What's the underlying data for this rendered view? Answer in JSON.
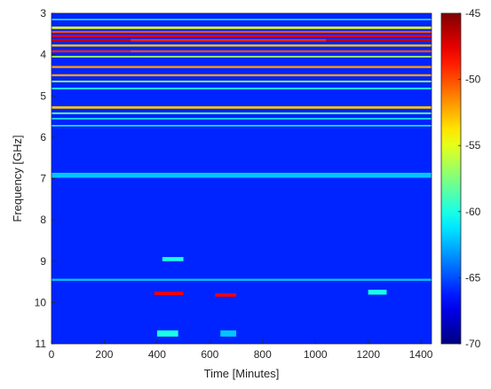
{
  "chart_data": {
    "type": "heatmap",
    "title": "",
    "xlabel": "Time [Minutes]",
    "ylabel": "Frequency [GHz]",
    "xlim": [
      0,
      1440
    ],
    "ylim": [
      3,
      11
    ],
    "y_direction": "reversed",
    "x_ticks": [
      0,
      200,
      400,
      600,
      800,
      1000,
      1200,
      1400
    ],
    "y_ticks": [
      3,
      4,
      5,
      6,
      7,
      8,
      9,
      10,
      11
    ],
    "colormap": "jet",
    "colorbar": {
      "range": [
        -70,
        -45
      ],
      "ticks": [
        -45,
        -50,
        -55,
        -60,
        -65,
        -70
      ]
    },
    "background_level": -66,
    "bands": [
      {
        "f": 3.15,
        "w": 0.03,
        "level": -60,
        "t": [
          0,
          1440
        ]
      },
      {
        "f": 3.35,
        "w": 0.06,
        "level": -55,
        "t": [
          0,
          1440
        ]
      },
      {
        "f": 3.45,
        "w": 0.05,
        "level": -50,
        "t": [
          0,
          1440
        ]
      },
      {
        "f": 3.55,
        "w": 0.05,
        "level": -48,
        "t": [
          0,
          1440
        ]
      },
      {
        "f": 3.65,
        "w": 0.06,
        "level": -47,
        "t": [
          0,
          300
        ]
      },
      {
        "f": 3.65,
        "w": 0.06,
        "level": -49,
        "t": [
          300,
          1040
        ]
      },
      {
        "f": 3.65,
        "w": 0.06,
        "level": -47,
        "t": [
          1040,
          1440
        ]
      },
      {
        "f": 3.78,
        "w": 0.05,
        "level": -53,
        "t": [
          0,
          1440
        ]
      },
      {
        "f": 3.92,
        "w": 0.05,
        "level": -49,
        "t": [
          0,
          300
        ]
      },
      {
        "f": 3.92,
        "w": 0.05,
        "level": -50,
        "t": [
          300,
          1440
        ]
      },
      {
        "f": 4.05,
        "w": 0.04,
        "level": -57,
        "t": [
          0,
          1440
        ]
      },
      {
        "f": 4.3,
        "w": 0.05,
        "level": -52,
        "t": [
          0,
          1440
        ]
      },
      {
        "f": 4.5,
        "w": 0.05,
        "level": -52,
        "t": [
          0,
          1440
        ]
      },
      {
        "f": 4.65,
        "w": 0.04,
        "level": -57,
        "t": [
          0,
          1440
        ]
      },
      {
        "f": 4.82,
        "w": 0.04,
        "level": -60,
        "t": [
          0,
          1440
        ]
      },
      {
        "f": 5.28,
        "w": 0.06,
        "level": -53,
        "t": [
          0,
          1440
        ]
      },
      {
        "f": 5.42,
        "w": 0.04,
        "level": -58,
        "t": [
          0,
          1440
        ]
      },
      {
        "f": 5.55,
        "w": 0.03,
        "level": -60,
        "t": [
          0,
          1440
        ]
      },
      {
        "f": 5.72,
        "w": 0.03,
        "level": -60,
        "t": [
          0,
          1440
        ]
      },
      {
        "f": 6.92,
        "w": 0.12,
        "level": -62,
        "t": [
          0,
          1440
        ]
      },
      {
        "f": 9.45,
        "w": 0.05,
        "level": -62,
        "t": [
          0,
          1440
        ]
      }
    ],
    "bursts": [
      {
        "f": 9.78,
        "w": 0.08,
        "level": -48,
        "t": [
          390,
          500
        ]
      },
      {
        "f": 9.82,
        "w": 0.08,
        "level": -48,
        "t": [
          620,
          700
        ]
      },
      {
        "f": 9.75,
        "w": 0.12,
        "level": -60,
        "t": [
          1200,
          1270
        ]
      },
      {
        "f": 8.95,
        "w": 0.1,
        "level": -60,
        "t": [
          420,
          500
        ]
      },
      {
        "f": 10.75,
        "w": 0.15,
        "level": -60,
        "t": [
          400,
          480
        ]
      },
      {
        "f": 10.75,
        "w": 0.15,
        "level": -62,
        "t": [
          640,
          700
        ]
      }
    ]
  }
}
